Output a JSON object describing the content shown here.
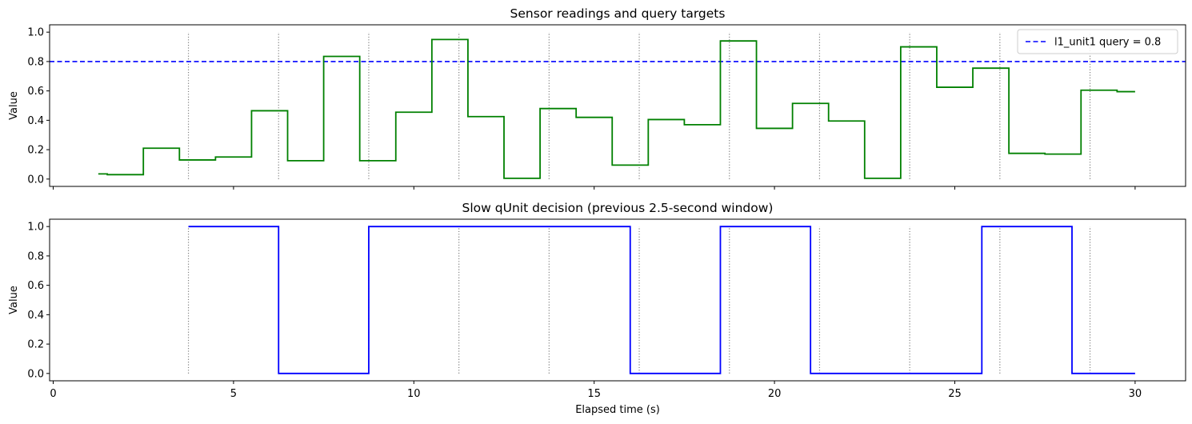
{
  "chart_data": [
    {
      "type": "line",
      "title": "Sensor readings and query targets",
      "ylabel": "Value",
      "xlabel": "",
      "xlim": [
        -0.1,
        31.4
      ],
      "ylim": [
        -0.05,
        1.05
      ],
      "yticks": [
        0.0,
        0.2,
        0.4,
        0.6,
        0.8,
        1.0
      ],
      "ytick_labels": [
        "0.0",
        "0.2",
        "0.4",
        "0.6",
        "0.8",
        "1.0"
      ],
      "xticks": [
        0,
        5,
        10,
        15,
        20,
        25,
        30
      ],
      "show_xtick_labels": false,
      "legend": {
        "placement": "top-right",
        "entries": [
          "l1_unit1 query = 0.8"
        ]
      },
      "series": [
        {
          "name": "",
          "style": "step-post",
          "color": "#008000",
          "x": [
            1.25,
            1.5,
            2.5,
            3.5,
            4.5,
            5.5,
            6.5,
            7.5,
            8.5,
            9.5,
            10.5,
            11.5,
            12.5,
            13.5,
            14.5,
            15.5,
            16.5,
            17.5,
            18.5,
            19.5,
            20.5,
            21.5,
            22.5,
            23.5,
            24.5,
            25.5,
            26.5,
            27.5,
            28.5,
            29.5,
            30.0
          ],
          "y": [
            0.035,
            0.03,
            0.21,
            0.13,
            0.15,
            0.465,
            0.125,
            0.835,
            0.125,
            0.455,
            0.95,
            0.425,
            0.005,
            0.48,
            0.42,
            0.095,
            0.405,
            0.37,
            0.94,
            0.345,
            0.515,
            0.395,
            0.005,
            0.9,
            0.625,
            0.755,
            0.175,
            0.17,
            0.605,
            0.595,
            0.595
          ]
        }
      ],
      "hlines": [
        {
          "y": 0.8,
          "color": "#0000ff",
          "style": "dashed",
          "label": "l1_unit1 query = 0.8"
        }
      ],
      "vlines": {
        "x": [
          3.75,
          6.25,
          8.75,
          11.25,
          13.75,
          16.25,
          18.75,
          21.25,
          23.75,
          26.25,
          28.75
        ],
        "color": "#808080",
        "style": "dotted",
        "y_range": [
          0,
          1
        ]
      }
    },
    {
      "type": "line",
      "title": "Slow qUnit decision (previous 2.5-second window)",
      "ylabel": "Value",
      "xlabel": "Elapsed time (s)",
      "xlim": [
        -0.1,
        31.4
      ],
      "ylim": [
        -0.05,
        1.05
      ],
      "yticks": [
        0.0,
        0.2,
        0.4,
        0.6,
        0.8,
        1.0
      ],
      "ytick_labels": [
        "0.0",
        "0.2",
        "0.4",
        "0.6",
        "0.8",
        "1.0"
      ],
      "xticks": [
        0,
        5,
        10,
        15,
        20,
        25,
        30
      ],
      "xtick_labels": [
        "0",
        "5",
        "10",
        "15",
        "20",
        "25",
        "30"
      ],
      "show_xtick_labels": true,
      "series": [
        {
          "name": "",
          "style": "step-post",
          "color": "#0000ff",
          "x": [
            3.75,
            6.25,
            8.75,
            16.0,
            18.5,
            21.0,
            25.75,
            28.25,
            30.0
          ],
          "y": [
            1,
            0,
            1,
            0,
            1,
            0,
            1,
            0,
            0
          ]
        }
      ],
      "vlines": {
        "x": [
          3.75,
          6.25,
          8.75,
          11.25,
          13.75,
          16.25,
          18.75,
          21.25,
          23.75,
          26.25,
          28.75
        ],
        "color": "#808080",
        "style": "dotted",
        "y_range": [
          0,
          1
        ]
      }
    }
  ]
}
